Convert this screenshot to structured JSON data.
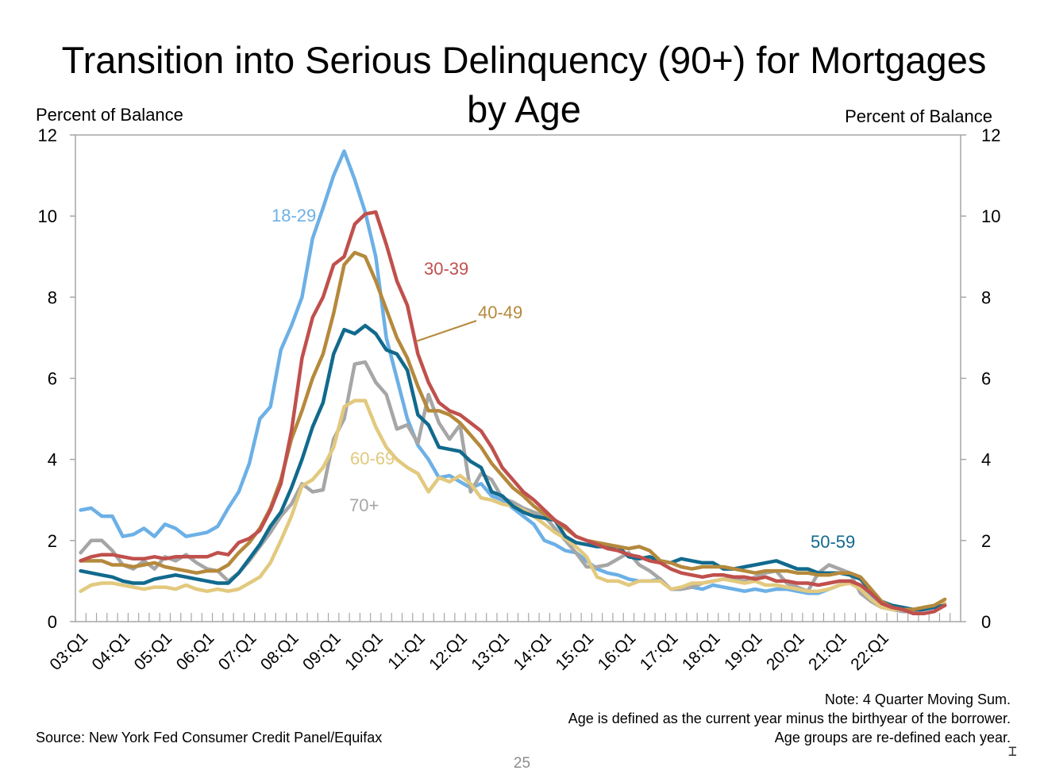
{
  "chart_data": {
    "type": "line",
    "title": "Transition into Serious Delinquency (90+) for Mortgages by Age",
    "ylabel_left": "Percent of Balance",
    "ylabel_right": "Percent of Balance",
    "ylim": [
      0,
      12
    ],
    "yticks": [
      0,
      2,
      4,
      6,
      8,
      10,
      12
    ],
    "x_start": "03:Q1",
    "x_tick_labels": [
      "03:Q1",
      "04:Q1",
      "05:Q1",
      "06:Q1",
      "07:Q1",
      "08:Q1",
      "09:Q1",
      "10:Q1",
      "11:Q1",
      "12:Q1",
      "13:Q1",
      "14:Q1",
      "15:Q1",
      "16:Q1",
      "17:Q1",
      "18:Q1",
      "19:Q1",
      "20:Q1",
      "21:Q1",
      "22:Q1"
    ],
    "x_end": "22:Q2",
    "series": [
      {
        "name": "18-29",
        "color": "#6cb0e6",
        "values": [
          2.75,
          2.8,
          2.6,
          2.6,
          2.1,
          2.15,
          2.3,
          2.1,
          2.4,
          2.3,
          2.1,
          2.15,
          2.2,
          2.35,
          2.8,
          3.2,
          3.9,
          5.0,
          5.3,
          6.7,
          7.3,
          8.0,
          9.45,
          10.2,
          11.0,
          11.6,
          10.9,
          10.1,
          9.0,
          7.0,
          6.0,
          5.0,
          4.35,
          4.0,
          3.55,
          3.6,
          3.45,
          3.3,
          3.4,
          3.1,
          3.0,
          2.8,
          2.6,
          2.4,
          2.0,
          1.9,
          1.75,
          1.7,
          1.5,
          1.3,
          1.2,
          1.15,
          1.05,
          1.0,
          1.0,
          1.05,
          0.8,
          0.8,
          0.85,
          0.8,
          0.9,
          0.85,
          0.8,
          0.75,
          0.8,
          0.75,
          0.8,
          0.8,
          0.75,
          0.7,
          0.7,
          0.8,
          0.9,
          1.0,
          0.8,
          0.6,
          0.45,
          0.35,
          0.3,
          0.25,
          0.3,
          0.35,
          0.4
        ]
      },
      {
        "name": "30-39",
        "color": "#c0504d",
        "values": [
          1.5,
          1.6,
          1.65,
          1.65,
          1.6,
          1.55,
          1.55,
          1.6,
          1.55,
          1.6,
          1.6,
          1.6,
          1.6,
          1.7,
          1.65,
          1.95,
          2.05,
          2.25,
          2.75,
          3.4,
          4.7,
          6.5,
          7.5,
          8.0,
          8.8,
          9.0,
          9.8,
          10.05,
          10.1,
          9.3,
          8.4,
          7.8,
          6.6,
          5.9,
          5.4,
          5.2,
          5.1,
          4.9,
          4.7,
          4.3,
          3.8,
          3.5,
          3.2,
          3.0,
          2.75,
          2.5,
          2.35,
          2.1,
          2.0,
          1.9,
          1.8,
          1.75,
          1.65,
          1.6,
          1.5,
          1.45,
          1.3,
          1.2,
          1.15,
          1.1,
          1.15,
          1.15,
          1.1,
          1.1,
          1.05,
          1.1,
          1.0,
          1.0,
          0.95,
          0.95,
          0.9,
          0.95,
          1.0,
          1.0,
          0.9,
          0.7,
          0.45,
          0.35,
          0.3,
          0.2,
          0.2,
          0.25,
          0.4
        ]
      },
      {
        "name": "40-49",
        "color": "#b5893c",
        "values": [
          1.5,
          1.5,
          1.5,
          1.4,
          1.4,
          1.35,
          1.4,
          1.45,
          1.35,
          1.3,
          1.25,
          1.2,
          1.25,
          1.25,
          1.4,
          1.7,
          1.95,
          2.3,
          2.8,
          3.5,
          4.5,
          5.2,
          6.0,
          6.6,
          7.6,
          8.8,
          9.1,
          9.0,
          8.4,
          7.7,
          7.0,
          6.5,
          5.8,
          5.2,
          5.2,
          5.1,
          4.9,
          4.6,
          4.3,
          3.9,
          3.6,
          3.3,
          3.1,
          2.85,
          2.65,
          2.5,
          2.3,
          2.1,
          2.0,
          1.95,
          1.9,
          1.85,
          1.8,
          1.85,
          1.75,
          1.5,
          1.45,
          1.35,
          1.3,
          1.35,
          1.35,
          1.35,
          1.3,
          1.25,
          1.2,
          1.25,
          1.25,
          1.25,
          1.2,
          1.2,
          1.15,
          1.15,
          1.2,
          1.2,
          1.1,
          0.8,
          0.5,
          0.35,
          0.3,
          0.3,
          0.35,
          0.4,
          0.55
        ]
      },
      {
        "name": "50-59",
        "color": "#116a8d",
        "values": [
          1.25,
          1.2,
          1.15,
          1.1,
          1.0,
          0.95,
          0.95,
          1.05,
          1.1,
          1.15,
          1.1,
          1.05,
          1.0,
          0.95,
          0.95,
          1.2,
          1.55,
          1.9,
          2.35,
          2.7,
          3.3,
          4.0,
          4.8,
          5.4,
          6.6,
          7.2,
          7.1,
          7.3,
          7.1,
          6.7,
          6.6,
          6.2,
          5.1,
          4.85,
          4.3,
          4.25,
          4.2,
          3.95,
          3.8,
          3.2,
          3.1,
          2.85,
          2.7,
          2.6,
          2.55,
          2.5,
          2.1,
          1.95,
          1.9,
          1.85,
          1.85,
          1.85,
          1.6,
          1.55,
          1.6,
          1.5,
          1.45,
          1.55,
          1.5,
          1.45,
          1.45,
          1.3,
          1.3,
          1.35,
          1.4,
          1.45,
          1.5,
          1.4,
          1.3,
          1.3,
          1.2,
          1.2,
          1.2,
          1.15,
          1.05,
          0.75,
          0.5,
          0.4,
          0.35,
          0.3,
          0.3,
          0.35,
          0.4
        ]
      },
      {
        "name": "60-69",
        "color": "#e2c97e",
        "values": [
          0.75,
          0.9,
          0.95,
          0.95,
          0.9,
          0.85,
          0.8,
          0.85,
          0.85,
          0.8,
          0.9,
          0.8,
          0.75,
          0.8,
          0.75,
          0.8,
          0.95,
          1.1,
          1.45,
          2.0,
          2.6,
          3.35,
          3.5,
          3.8,
          4.3,
          5.3,
          5.45,
          5.45,
          4.8,
          4.3,
          4.0,
          3.8,
          3.65,
          3.2,
          3.55,
          3.45,
          3.6,
          3.4,
          3.05,
          3.0,
          2.9,
          2.85,
          2.75,
          2.6,
          2.4,
          2.2,
          2.05,
          1.85,
          1.6,
          1.1,
          1.0,
          1.0,
          0.9,
          1.0,
          1.0,
          1.0,
          0.8,
          0.85,
          0.95,
          0.95,
          1.0,
          1.05,
          1.0,
          0.95,
          1.0,
          0.9,
          0.9,
          0.85,
          0.8,
          0.75,
          0.75,
          0.8,
          0.9,
          0.95,
          0.8,
          0.55,
          0.35,
          0.3,
          0.3,
          0.3,
          0.35,
          0.4,
          0.45
        ]
      },
      {
        "name": "70+",
        "color": "#a6a6a6",
        "values": [
          1.7,
          2.0,
          2.0,
          1.75,
          1.4,
          1.3,
          1.5,
          1.3,
          1.6,
          1.5,
          1.65,
          1.45,
          1.3,
          1.25,
          1.0,
          1.2,
          1.5,
          1.85,
          2.2,
          2.6,
          2.9,
          3.4,
          3.2,
          3.25,
          4.5,
          5.0,
          6.35,
          6.4,
          5.9,
          5.6,
          4.75,
          4.85,
          4.4,
          5.6,
          4.9,
          4.5,
          4.85,
          3.2,
          3.65,
          3.5,
          3.05,
          2.95,
          2.8,
          2.7,
          2.6,
          2.3,
          2.0,
          1.7,
          1.35,
          1.35,
          1.4,
          1.55,
          1.7,
          1.4,
          1.25,
          1.05,
          0.8,
          0.8,
          0.85,
          0.95,
          1.0,
          1.05,
          1.05,
          1.0,
          1.1,
          1.2,
          1.25,
          0.95,
          0.85,
          0.75,
          1.2,
          1.4,
          1.3,
          1.2,
          0.7,
          0.5,
          0.35,
          0.3,
          0.25,
          0.25,
          0.3,
          0.35,
          0.4
        ]
      }
    ]
  },
  "notes": {
    "line1": "Note: 4 Quarter Moving Sum.",
    "line2": "Age is defined as the current year minus the birthyear of the borrower.",
    "line3": "Age groups are re-defined each year."
  },
  "source": "Source: New York Fed Consumer Credit Panel/Equifax",
  "page_number": "25"
}
